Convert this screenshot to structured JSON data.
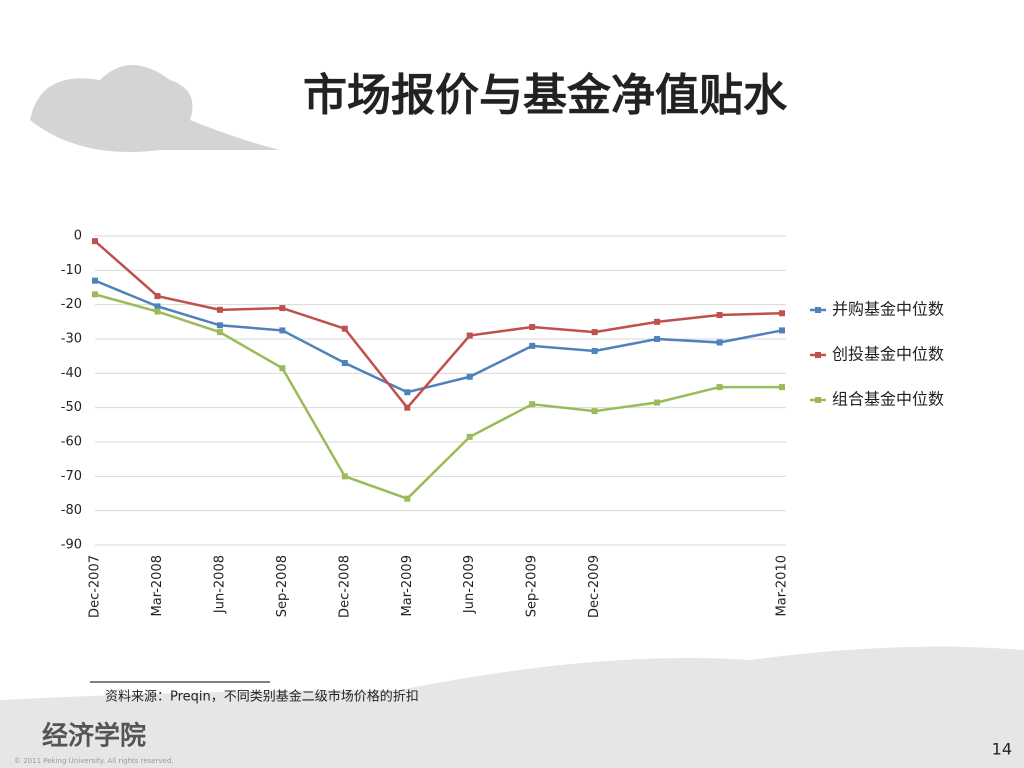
{
  "chart_data": {
    "type": "line",
    "title": "市场报价与基金净值贴水",
    "categories": [
      "Dec-2007",
      "Mar-2008",
      "Jun-2008",
      "Sep-2008",
      "Dec-2008",
      "Mar-2009",
      "Jun-2009",
      "Sep-2009",
      "Dec-2009",
      null,
      null,
      "Mar-2010"
    ],
    "series": [
      {
        "name": "并购基金中位数",
        "color": "#4f81bd",
        "values": [
          -13,
          -20.5,
          -26,
          -27.5,
          -37,
          -45.5,
          -41,
          -32,
          -33.5,
          -30,
          -31,
          -27.5
        ]
      },
      {
        "name": "创投基金中位数",
        "color": "#c0504d",
        "values": [
          -1.5,
          -17.5,
          -21.5,
          -21,
          -27,
          -50,
          -29,
          -26.5,
          -28,
          -25,
          -23,
          -22.5
        ]
      },
      {
        "name": "组合基金中位数",
        "color": "#9bbb59",
        "values": [
          -17,
          -22,
          -28,
          -38.5,
          -70,
          -76.5,
          -58.5,
          -49,
          -51,
          -48.5,
          -44,
          -44
        ]
      }
    ],
    "ylim": [
      -90,
      0
    ],
    "yticks": [
      0,
      -10,
      -20,
      -30,
      -40,
      -50,
      -60,
      -70,
      -80,
      -90
    ],
    "grid": true,
    "legend": "right",
    "source": "资料来源：Preqin，不同类别基金二级市场价格的折扣"
  },
  "footer": {
    "logo": "经济学院",
    "copyright": "© 2011 Peking University. All rights reserved.",
    "page": "14"
  }
}
